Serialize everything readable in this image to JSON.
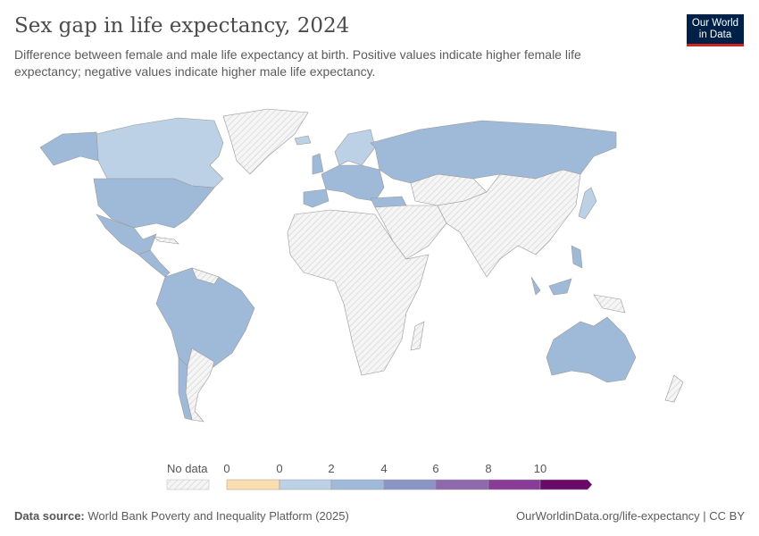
{
  "header": {
    "title": "Sex gap in life expectancy, 2024",
    "subtitle": "Difference between female and male life expectancy at birth. Positive values indicate higher female life expectancy; negative values indicate higher male life expectancy.",
    "logo": "Our World in Data"
  },
  "legend": {
    "no_data_label": "No data",
    "tick_labels": [
      "0",
      "0",
      "2",
      "4",
      "6",
      "8",
      "10"
    ],
    "bins": [
      {
        "range": "<0",
        "color": "#fbdeb0"
      },
      {
        "range": "0-2",
        "color": "#bcd1e5"
      },
      {
        "range": "2-4",
        "color": "#9fbad8"
      },
      {
        "range": "4-6",
        "color": "#8a95c5"
      },
      {
        "range": "6-8",
        "color": "#8d69ae"
      },
      {
        "range": "8-10",
        "color": "#883c97"
      },
      {
        "range": ">10",
        "color": "#6a0a68"
      }
    ]
  },
  "colors": {
    "no_data": "#f2f2f2",
    "bin_0_2": "#bcd1e5",
    "bin_2_4": "#9fbad8",
    "border": "#888"
  },
  "footer": {
    "source_label": "Data source:",
    "source": "World Bank Poverty and Inequality Platform (2025)",
    "url": "OurWorldinData.org/life-expectancy | CC BY"
  }
}
